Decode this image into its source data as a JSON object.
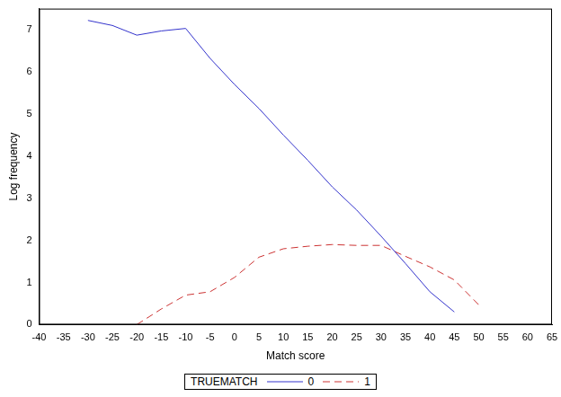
{
  "chart_data": {
    "type": "line",
    "x_label": "Match score",
    "y_label": "Log frequency",
    "legend_title": "TRUEMATCH",
    "legend": "bottom",
    "grid": false,
    "xlim": [
      -40,
      65
    ],
    "xticks": [
      -40,
      -35,
      -30,
      -25,
      -20,
      -15,
      -10,
      -5,
      0,
      5,
      10,
      15,
      20,
      25,
      30,
      35,
      40,
      45,
      50,
      55,
      60,
      65
    ],
    "ylim": [
      0,
      7.5
    ],
    "yticks": [
      0,
      1,
      2,
      3,
      4,
      5,
      6,
      7
    ],
    "series": [
      {
        "name": "0",
        "color": "#3333cc",
        "line_style": "solid",
        "x": [
          -30,
          -25,
          -20,
          -15,
          -10,
          -5,
          0,
          5,
          10,
          15,
          20,
          25,
          30,
          35,
          40,
          45
        ],
        "values": [
          7.22,
          7.1,
          6.87,
          6.97,
          7.03,
          6.32,
          5.7,
          5.13,
          4.5,
          3.9,
          3.27,
          2.72,
          2.1,
          1.45,
          0.78,
          0.3
        ]
      },
      {
        "name": "1",
        "color": "#cc3333",
        "line_style": "dashed",
        "x": [
          -20,
          -15,
          -10,
          -5,
          0,
          5,
          10,
          15,
          20,
          25,
          30,
          35,
          40,
          45,
          50
        ],
        "values": [
          0.0,
          0.37,
          0.7,
          0.78,
          1.12,
          1.6,
          1.8,
          1.86,
          1.9,
          1.88,
          1.88,
          1.62,
          1.37,
          1.06,
          0.47
        ]
      }
    ]
  }
}
